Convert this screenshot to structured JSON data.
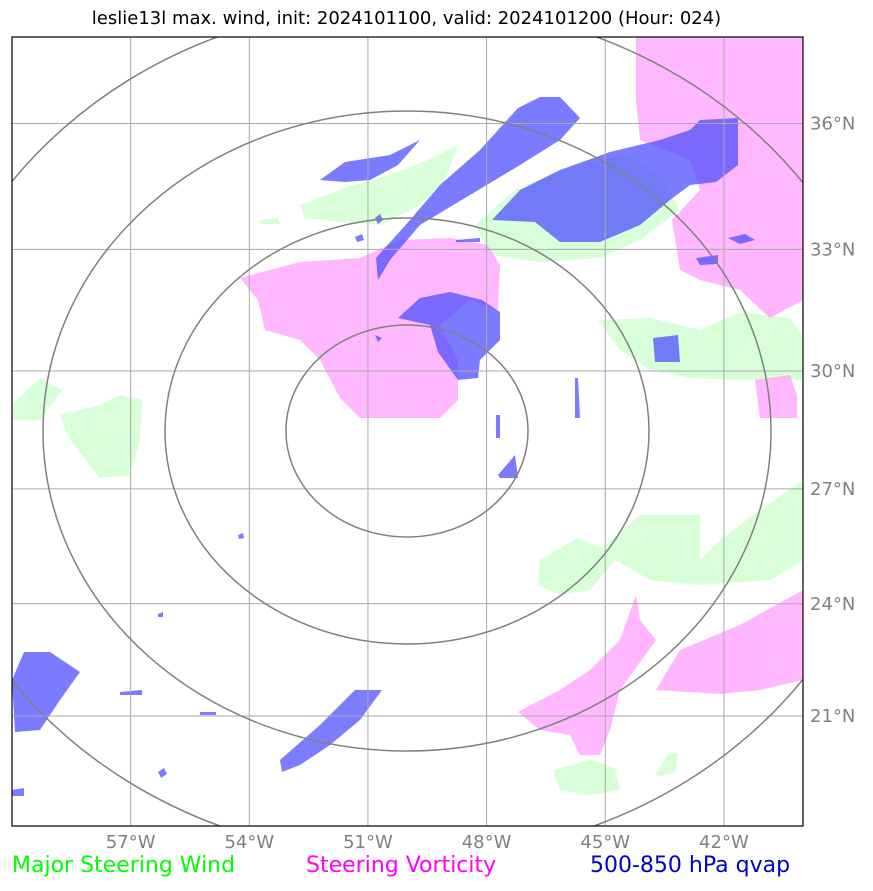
{
  "title": "leslie13l max. wind, init: 2024101100, valid: 2024101200 (Hour: 024)",
  "map": {
    "lon_range": [
      -60,
      -40
    ],
    "lat_range": [
      18,
      38
    ],
    "lon_ticks": [
      {
        "value": -57,
        "label": "57°W"
      },
      {
        "value": -54,
        "label": "54°W"
      },
      {
        "value": -51,
        "label": "51°W"
      },
      {
        "value": -48,
        "label": "48°W"
      },
      {
        "value": -45,
        "label": "45°W"
      },
      {
        "value": -42,
        "label": "42°W"
      }
    ],
    "lat_ticks": [
      {
        "value": 21,
        "label": "21°N"
      },
      {
        "value": 24,
        "label": "24°N"
      },
      {
        "value": 27,
        "label": "27°N"
      },
      {
        "value": 30,
        "label": "30°N"
      },
      {
        "value": 33,
        "label": "33°N"
      },
      {
        "value": 36,
        "label": "36°N"
      }
    ],
    "grid": true,
    "range_rings_center": {
      "lon": -49.2,
      "lat": 28.2
    },
    "colors": {
      "wind": "#ccffcc",
      "vorticity": "#ffaaff",
      "qvap": "#5050ff",
      "ring": "#808080",
      "grid": "#aaaaaa",
      "frame": "#000000"
    }
  },
  "legend": [
    {
      "label": "Major Steering Wind",
      "color": "#00ff00"
    },
    {
      "label": "Steering Vorticity",
      "color": "#ff00ff"
    },
    {
      "label": "500-850 hPa qvap",
      "color": "#0000cc"
    }
  ]
}
